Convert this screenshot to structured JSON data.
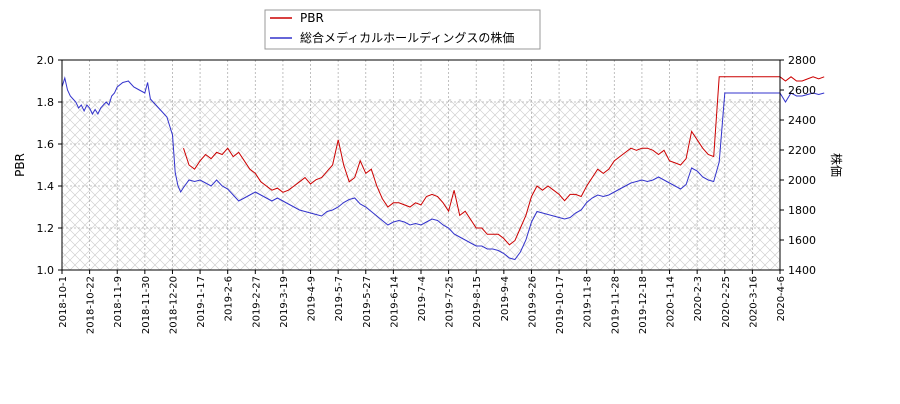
{
  "chart_data": {
    "type": "line",
    "legend_position": "top-center",
    "grid": true,
    "xlabel": "",
    "x_ticks": [
      "2018-10-1",
      "2018-10-22",
      "2018-11-9",
      "2018-11-30",
      "2018-12-20",
      "2019-1-17",
      "2019-2-6",
      "2019-2-27",
      "2019-3-19",
      "2019-4-9",
      "2019-5-7",
      "2019-5-27",
      "2019-6-14",
      "2019-7-4",
      "2019-7-25",
      "2019-8-15",
      "2019-9-4",
      "2019-9-26",
      "2019-10-17",
      "2019-11-8",
      "2019-11-28",
      "2019-12-18",
      "2020-1-14",
      "2020-2-3",
      "2020-2-25",
      "2020-3-16",
      "2020-4-6"
    ],
    "y_left": {
      "label": "PBR",
      "min": 1.0,
      "max": 2.0,
      "ticks": [
        "1.0",
        "1.2",
        "1.4",
        "1.6",
        "1.8",
        "2.0"
      ]
    },
    "y_right": {
      "label": "株価",
      "min": 1400,
      "max": 2800,
      "ticks": [
        "1400",
        "1600",
        "1800",
        "2000",
        "2200",
        "2400",
        "2600",
        "2800"
      ]
    },
    "series": [
      {
        "name": "PBR",
        "axis": "left",
        "color": "#cc0000",
        "points": [
          [
            4.4,
            1.58
          ],
          [
            4.6,
            1.5
          ],
          [
            4.8,
            1.48
          ],
          [
            5.0,
            1.52
          ],
          [
            5.2,
            1.55
          ],
          [
            5.4,
            1.53
          ],
          [
            5.6,
            1.56
          ],
          [
            5.8,
            1.55
          ],
          [
            6.0,
            1.58
          ],
          [
            6.2,
            1.54
          ],
          [
            6.4,
            1.56
          ],
          [
            6.6,
            1.52
          ],
          [
            6.8,
            1.48
          ],
          [
            7.0,
            1.46
          ],
          [
            7.2,
            1.42
          ],
          [
            7.4,
            1.4
          ],
          [
            7.6,
            1.38
          ],
          [
            7.8,
            1.39
          ],
          [
            8.0,
            1.37
          ],
          [
            8.2,
            1.38
          ],
          [
            8.4,
            1.4
          ],
          [
            8.6,
            1.42
          ],
          [
            8.8,
            1.44
          ],
          [
            9.0,
            1.41
          ],
          [
            9.2,
            1.43
          ],
          [
            9.4,
            1.44
          ],
          [
            9.6,
            1.47
          ],
          [
            9.8,
            1.5
          ],
          [
            10.0,
            1.62
          ],
          [
            10.2,
            1.5
          ],
          [
            10.4,
            1.42
          ],
          [
            10.6,
            1.44
          ],
          [
            10.8,
            1.52
          ],
          [
            11.0,
            1.46
          ],
          [
            11.2,
            1.48
          ],
          [
            11.4,
            1.4
          ],
          [
            11.6,
            1.34
          ],
          [
            11.8,
            1.3
          ],
          [
            12.0,
            1.32
          ],
          [
            12.2,
            1.32
          ],
          [
            12.4,
            1.31
          ],
          [
            12.6,
            1.3
          ],
          [
            12.8,
            1.32
          ],
          [
            13.0,
            1.31
          ],
          [
            13.2,
            1.35
          ],
          [
            13.4,
            1.36
          ],
          [
            13.6,
            1.35
          ],
          [
            13.8,
            1.32
          ],
          [
            14.0,
            1.28
          ],
          [
            14.2,
            1.38
          ],
          [
            14.4,
            1.26
          ],
          [
            14.6,
            1.28
          ],
          [
            14.8,
            1.24
          ],
          [
            15.0,
            1.2
          ],
          [
            15.2,
            1.2
          ],
          [
            15.4,
            1.17
          ],
          [
            15.6,
            1.17
          ],
          [
            15.8,
            1.17
          ],
          [
            16.0,
            1.15
          ],
          [
            16.2,
            1.12
          ],
          [
            16.4,
            1.14
          ],
          [
            16.6,
            1.2
          ],
          [
            16.8,
            1.26
          ],
          [
            17.0,
            1.35
          ],
          [
            17.2,
            1.4
          ],
          [
            17.4,
            1.38
          ],
          [
            17.6,
            1.4
          ],
          [
            17.8,
            1.38
          ],
          [
            18.0,
            1.36
          ],
          [
            18.2,
            1.33
          ],
          [
            18.4,
            1.36
          ],
          [
            18.6,
            1.36
          ],
          [
            18.8,
            1.35
          ],
          [
            19.0,
            1.4
          ],
          [
            19.2,
            1.44
          ],
          [
            19.4,
            1.48
          ],
          [
            19.6,
            1.46
          ],
          [
            19.8,
            1.48
          ],
          [
            20.0,
            1.52
          ],
          [
            20.2,
            1.54
          ],
          [
            20.4,
            1.56
          ],
          [
            20.6,
            1.58
          ],
          [
            20.8,
            1.57
          ],
          [
            21.0,
            1.58
          ],
          [
            21.2,
            1.58
          ],
          [
            21.4,
            1.57
          ],
          [
            21.6,
            1.55
          ],
          [
            21.8,
            1.57
          ],
          [
            22.0,
            1.52
          ],
          [
            22.2,
            1.51
          ],
          [
            22.4,
            1.5
          ],
          [
            22.6,
            1.53
          ],
          [
            22.8,
            1.66
          ],
          [
            23.0,
            1.62
          ],
          [
            23.2,
            1.58
          ],
          [
            23.4,
            1.55
          ],
          [
            23.6,
            1.54
          ],
          [
            23.8,
            1.92
          ],
          [
            24.2,
            1.92
          ],
          [
            24.6,
            1.92
          ],
          [
            25.0,
            1.92
          ],
          [
            25.4,
            1.92
          ],
          [
            25.8,
            1.92
          ],
          [
            26.0,
            1.92
          ],
          [
            26.2,
            1.9
          ],
          [
            26.4,
            1.92
          ],
          [
            26.6,
            1.9
          ],
          [
            26.8,
            1.9
          ],
          [
            27.0,
            1.91
          ],
          [
            27.2,
            1.92
          ],
          [
            27.4,
            1.91
          ],
          [
            27.6,
            1.92
          ]
        ]
      },
      {
        "name": "総合メディカルホールディングスの株価",
        "axis": "right",
        "color": "#3333cc",
        "points": [
          [
            0.0,
            2620
          ],
          [
            0.1,
            2680
          ],
          [
            0.2,
            2600
          ],
          [
            0.3,
            2560
          ],
          [
            0.4,
            2540
          ],
          [
            0.5,
            2520
          ],
          [
            0.6,
            2480
          ],
          [
            0.7,
            2500
          ],
          [
            0.8,
            2460
          ],
          [
            0.9,
            2500
          ],
          [
            1.0,
            2480
          ],
          [
            1.1,
            2440
          ],
          [
            1.2,
            2470
          ],
          [
            1.3,
            2440
          ],
          [
            1.4,
            2480
          ],
          [
            1.5,
            2500
          ],
          [
            1.6,
            2520
          ],
          [
            1.7,
            2500
          ],
          [
            1.8,
            2560
          ],
          [
            1.9,
            2580
          ],
          [
            2.0,
            2620
          ],
          [
            2.2,
            2650
          ],
          [
            2.4,
            2660
          ],
          [
            2.6,
            2620
          ],
          [
            2.8,
            2600
          ],
          [
            3.0,
            2580
          ],
          [
            3.1,
            2650
          ],
          [
            3.2,
            2540
          ],
          [
            3.4,
            2500
          ],
          [
            3.6,
            2460
          ],
          [
            3.8,
            2420
          ],
          [
            4.0,
            2300
          ],
          [
            4.1,
            2050
          ],
          [
            4.2,
            1960
          ],
          [
            4.3,
            1920
          ],
          [
            4.4,
            1950
          ],
          [
            4.6,
            2000
          ],
          [
            4.8,
            1990
          ],
          [
            5.0,
            2000
          ],
          [
            5.2,
            1980
          ],
          [
            5.4,
            1960
          ],
          [
            5.6,
            2000
          ],
          [
            5.8,
            1960
          ],
          [
            6.0,
            1940
          ],
          [
            6.2,
            1900
          ],
          [
            6.4,
            1860
          ],
          [
            6.6,
            1880
          ],
          [
            6.8,
            1900
          ],
          [
            7.0,
            1920
          ],
          [
            7.2,
            1900
          ],
          [
            7.4,
            1880
          ],
          [
            7.6,
            1860
          ],
          [
            7.8,
            1880
          ],
          [
            8.0,
            1860
          ],
          [
            8.2,
            1840
          ],
          [
            8.4,
            1820
          ],
          [
            8.6,
            1800
          ],
          [
            8.8,
            1790
          ],
          [
            9.0,
            1780
          ],
          [
            9.2,
            1770
          ],
          [
            9.4,
            1760
          ],
          [
            9.6,
            1790
          ],
          [
            9.8,
            1800
          ],
          [
            10.0,
            1820
          ],
          [
            10.2,
            1850
          ],
          [
            10.4,
            1870
          ],
          [
            10.6,
            1880
          ],
          [
            10.8,
            1840
          ],
          [
            11.0,
            1820
          ],
          [
            11.2,
            1790
          ],
          [
            11.4,
            1760
          ],
          [
            11.6,
            1730
          ],
          [
            11.8,
            1700
          ],
          [
            12.0,
            1720
          ],
          [
            12.2,
            1730
          ],
          [
            12.4,
            1720
          ],
          [
            12.6,
            1700
          ],
          [
            12.8,
            1710
          ],
          [
            13.0,
            1700
          ],
          [
            13.2,
            1720
          ],
          [
            13.4,
            1740
          ],
          [
            13.6,
            1730
          ],
          [
            13.8,
            1700
          ],
          [
            14.0,
            1680
          ],
          [
            14.2,
            1640
          ],
          [
            14.4,
            1620
          ],
          [
            14.6,
            1600
          ],
          [
            14.8,
            1580
          ],
          [
            15.0,
            1560
          ],
          [
            15.2,
            1560
          ],
          [
            15.4,
            1540
          ],
          [
            15.6,
            1540
          ],
          [
            15.8,
            1530
          ],
          [
            16.0,
            1510
          ],
          [
            16.2,
            1480
          ],
          [
            16.4,
            1470
          ],
          [
            16.6,
            1520
          ],
          [
            16.8,
            1600
          ],
          [
            17.0,
            1720
          ],
          [
            17.2,
            1790
          ],
          [
            17.4,
            1780
          ],
          [
            17.6,
            1770
          ],
          [
            17.8,
            1760
          ],
          [
            18.0,
            1750
          ],
          [
            18.2,
            1740
          ],
          [
            18.4,
            1750
          ],
          [
            18.6,
            1780
          ],
          [
            18.8,
            1800
          ],
          [
            19.0,
            1850
          ],
          [
            19.2,
            1880
          ],
          [
            19.4,
            1900
          ],
          [
            19.6,
            1890
          ],
          [
            19.8,
            1900
          ],
          [
            20.0,
            1920
          ],
          [
            20.2,
            1940
          ],
          [
            20.4,
            1960
          ],
          [
            20.6,
            1980
          ],
          [
            20.8,
            1990
          ],
          [
            21.0,
            2000
          ],
          [
            21.2,
            1990
          ],
          [
            21.4,
            2000
          ],
          [
            21.6,
            2020
          ],
          [
            21.8,
            2000
          ],
          [
            22.0,
            1980
          ],
          [
            22.2,
            1960
          ],
          [
            22.4,
            1940
          ],
          [
            22.6,
            1970
          ],
          [
            22.8,
            2080
          ],
          [
            23.0,
            2060
          ],
          [
            23.2,
            2020
          ],
          [
            23.4,
            2000
          ],
          [
            23.6,
            1990
          ],
          [
            23.8,
            2120
          ],
          [
            24.0,
            2580
          ],
          [
            24.4,
            2580
          ],
          [
            24.8,
            2580
          ],
          [
            25.2,
            2580
          ],
          [
            25.6,
            2580
          ],
          [
            26.0,
            2580
          ],
          [
            26.2,
            2520
          ],
          [
            26.4,
            2580
          ],
          [
            26.6,
            2560
          ],
          [
            26.8,
            2560
          ],
          [
            27.0,
            2570
          ],
          [
            27.2,
            2580
          ],
          [
            27.4,
            2570
          ],
          [
            27.6,
            2580
          ]
        ]
      }
    ]
  }
}
